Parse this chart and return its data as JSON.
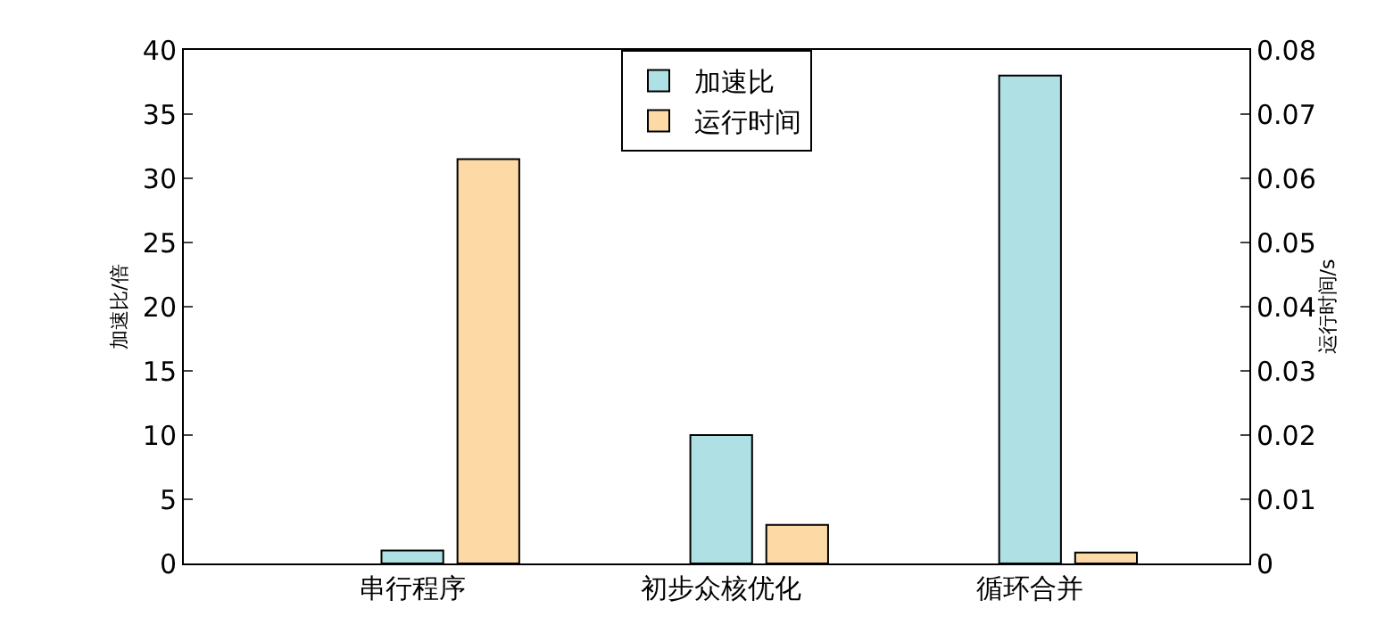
{
  "chart_data": {
    "type": "bar",
    "ylabel": "加速比/倍",
    "y2label": "运行时间/s",
    "categories": [
      "串行程序",
      "初步众核优化",
      "循环合并"
    ],
    "series": [
      {
        "name": "加速比",
        "color": "#aee0e4",
        "values": [
          1,
          10,
          38
        ]
      },
      {
        "name": "运行时间",
        "color": "#fdd9a6",
        "values": [
          0.063,
          0.006,
          0.0017
        ],
        "axis": "y2"
      }
    ],
    "ylim": [
      0,
      40
    ],
    "yticks": [
      0,
      5,
      10,
      15,
      20,
      25,
      30,
      35,
      40
    ],
    "y2lim": [
      0,
      0.08
    ],
    "y2ticks": [
      0,
      0.01,
      0.02,
      0.03,
      0.04,
      0.05,
      0.06,
      0.07,
      0.08
    ],
    "legend": "top"
  }
}
